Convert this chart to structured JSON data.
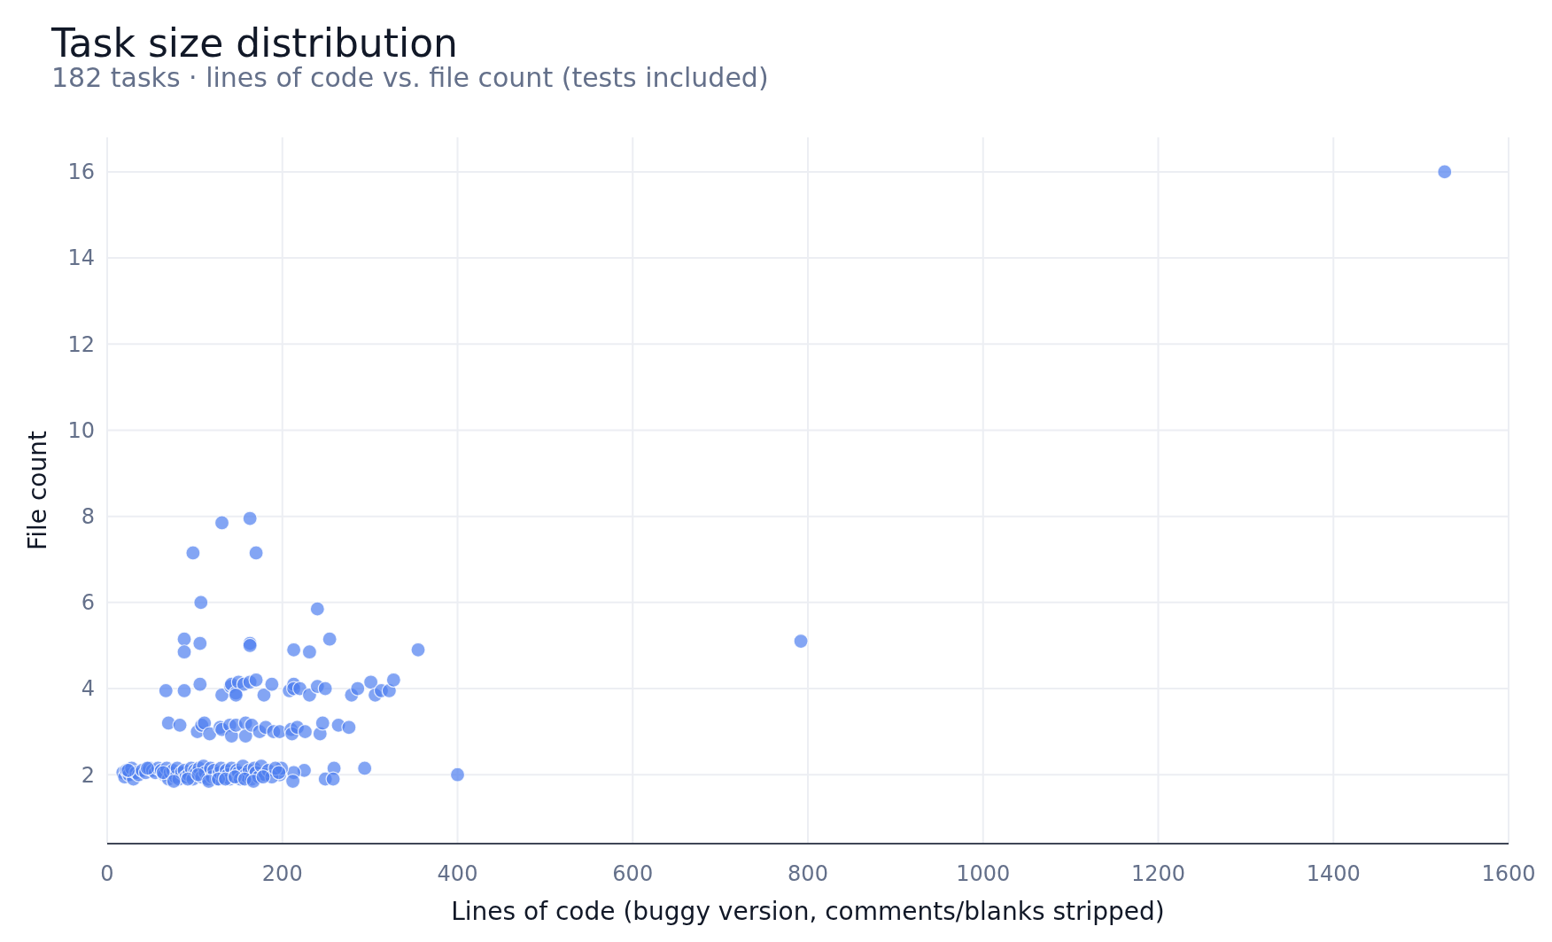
{
  "chart_data": {
    "type": "scatter",
    "title": "Task size distribution",
    "subtitle": "182 tasks · lines of code vs. file count (tests included)",
    "xlabel": "Lines of code (buggy version, comments/blanks stripped)",
    "ylabel": "File count",
    "xlim": [
      0,
      1600
    ],
    "ylim": [
      0.4,
      16.8
    ],
    "xticks": [
      0,
      200,
      400,
      600,
      800,
      1000,
      1200,
      1400,
      1600
    ],
    "yticks": [
      2,
      4,
      6,
      8,
      10,
      12,
      14,
      16
    ],
    "grid": true,
    "marker": "circle",
    "series": [
      {
        "color": "#4f7ff0",
        "x": [
          1527,
          792,
          400,
          355,
          131,
          163,
          98,
          170,
          107,
          240,
          88,
          106,
          163,
          163,
          254,
          88,
          213,
          231,
          67,
          88,
          106,
          131,
          141,
          142,
          147,
          150,
          156,
          163,
          170,
          179,
          188,
          208,
          213,
          213,
          220,
          231,
          240,
          249,
          279,
          286,
          301,
          306,
          313,
          322,
          327,
          147,
          70,
          83,
          103,
          108,
          111,
          117,
          129,
          131,
          140,
          142,
          147,
          158,
          158,
          165,
          174,
          181,
          190,
          197,
          210,
          211,
          217,
          226,
          243,
          246,
          264,
          276,
          294,
          259,
          249,
          258,
          225,
          213,
          212,
          197,
          199,
          18,
          20,
          22,
          25,
          28,
          30,
          33,
          36,
          40,
          44,
          48,
          52,
          55,
          58,
          62,
          65,
          68,
          70,
          72,
          75,
          78,
          80,
          82,
          85,
          88,
          90,
          93,
          96,
          98,
          100,
          102,
          105,
          108,
          110,
          112,
          115,
          118,
          120,
          122,
          125,
          128,
          130,
          133,
          136,
          138,
          140,
          142,
          145,
          148,
          150,
          152,
          155,
          158,
          160,
          162,
          165,
          168,
          170,
          173,
          176,
          180,
          184,
          188,
          192,
          196,
          24,
          46,
          64,
          76,
          92,
          104,
          116,
          127,
          135,
          146,
          157,
          167,
          178
        ],
        "values": [
          16,
          5.1,
          2.0,
          4.9,
          7.85,
          7.95,
          7.15,
          7.15,
          6.0,
          5.85,
          5.15,
          5.05,
          5.05,
          5.0,
          5.15,
          4.85,
          4.9,
          4.85,
          3.95,
          3.95,
          4.1,
          3.85,
          4.05,
          4.1,
          3.9,
          4.15,
          4.1,
          4.15,
          4.2,
          3.85,
          4.1,
          3.95,
          4.1,
          4.0,
          4.0,
          3.85,
          4.05,
          4.0,
          3.85,
          4.0,
          4.15,
          3.85,
          3.95,
          3.95,
          4.2,
          3.85,
          3.2,
          3.15,
          3.0,
          3.15,
          3.2,
          2.95,
          3.1,
          3.05,
          3.15,
          2.9,
          3.15,
          3.2,
          2.9,
          3.15,
          3.0,
          3.1,
          3.0,
          3.0,
          3.05,
          2.95,
          3.1,
          3.0,
          2.95,
          3.2,
          3.15,
          3.1,
          2.15,
          2.15,
          1.9,
          1.9,
          2.1,
          2.05,
          1.85,
          2.0,
          2.15,
          2.05,
          1.95,
          2.1,
          2.0,
          2.15,
          1.9,
          2.05,
          2.0,
          2.1,
          2.05,
          2.15,
          2.1,
          2.05,
          2.15,
          2.1,
          2.0,
          2.15,
          1.9,
          2.05,
          2.1,
          1.95,
          2.15,
          1.9,
          2.05,
          2.1,
          1.95,
          2.0,
          2.15,
          1.9,
          2.1,
          2.05,
          2.15,
          1.95,
          2.2,
          2.05,
          1.9,
          2.15,
          1.95,
          2.1,
          1.9,
          2.05,
          2.15,
          1.95,
          2.1,
          2.0,
          1.9,
          2.15,
          1.95,
          2.1,
          2.05,
          1.9,
          2.2,
          2.0,
          1.95,
          2.1,
          1.9,
          2.15,
          2.05,
          1.95,
          2.2,
          2.0,
          2.1,
          1.95,
          2.15,
          2.05,
          2.1,
          2.15,
          2.05,
          1.85,
          1.9,
          2.0,
          1.85,
          1.9,
          1.9,
          1.95,
          1.9,
          1.85,
          1.95
        ]
      }
    ]
  }
}
